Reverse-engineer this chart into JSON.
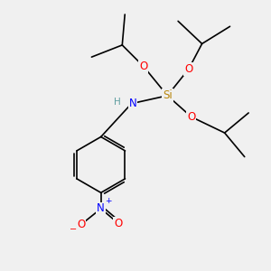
{
  "background_color": "#f0f0f0",
  "atom_colors": {
    "C": "#000000",
    "H": "#5f9ea0",
    "N": "#0000ff",
    "O": "#ff0000",
    "Si": "#b8860b"
  },
  "bond_color": "#000000",
  "bond_width": 1.2,
  "figsize": [
    3.0,
    3.0
  ],
  "dpi": 100,
  "xlim": [
    0,
    10
  ],
  "ylim": [
    0,
    10
  ]
}
